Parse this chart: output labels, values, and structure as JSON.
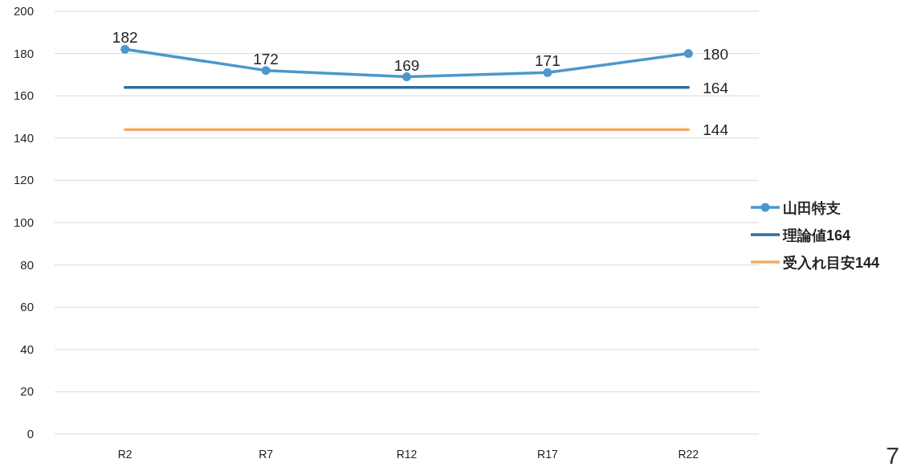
{
  "chart_data": {
    "type": "line",
    "categories": [
      "R2",
      "R7",
      "R12",
      "R17",
      "R22"
    ],
    "series": [
      {
        "name": "山田特支",
        "color": "#4a98cc",
        "values": [
          182,
          172,
          169,
          171,
          180
        ],
        "marker": "circle",
        "value_labels": [
          "182",
          "172",
          "169",
          "171",
          "180"
        ]
      },
      {
        "name": "理論値164",
        "color": "#2e6e9f",
        "values": [
          164,
          164,
          164,
          164,
          164
        ],
        "marker": "none",
        "value_labels": [
          null,
          null,
          null,
          null,
          "164"
        ]
      },
      {
        "name": "受入れ目安144",
        "color": "#f2aa66",
        "values": [
          144,
          144,
          144,
          144,
          144
        ],
        "marker": "none",
        "value_labels": [
          null,
          null,
          null,
          null,
          "144"
        ]
      }
    ],
    "ylim": [
      0,
      200
    ],
    "yticks": [
      0,
      20,
      40,
      60,
      80,
      100,
      120,
      140,
      160,
      180,
      200
    ],
    "grid": "y",
    "legend": "right",
    "annotations": [
      "7"
    ]
  }
}
